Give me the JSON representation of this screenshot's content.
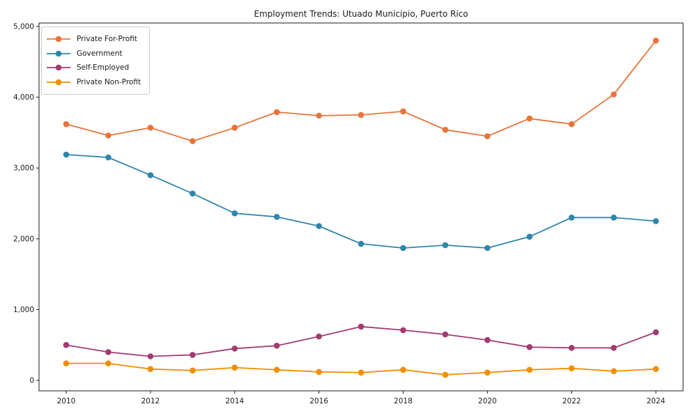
{
  "chart_data": {
    "type": "line",
    "title": "Employment Trends: Utuado Municipio, Puerto Rico",
    "x": [
      2010,
      2011,
      2012,
      2013,
      2014,
      2015,
      2016,
      2017,
      2018,
      2019,
      2020,
      2021,
      2022,
      2023,
      2024
    ],
    "series": [
      {
        "name": "Private For-Profit",
        "color": "#E8743B",
        "values": [
          3620,
          3460,
          3570,
          3380,
          3570,
          3790,
          3740,
          3750,
          3800,
          3540,
          3450,
          3700,
          3620,
          4040,
          4800
        ]
      },
      {
        "name": "Government",
        "color": "#2E86AB",
        "values": [
          3190,
          3150,
          2900,
          2640,
          2360,
          2310,
          2180,
          1930,
          1870,
          1910,
          1870,
          2030,
          2300,
          2300,
          2250
        ]
      },
      {
        "name": "Self-Employed",
        "color": "#A23B72",
        "values": [
          500,
          400,
          340,
          360,
          450,
          490,
          620,
          760,
          710,
          650,
          570,
          470,
          460,
          460,
          680
        ]
      },
      {
        "name": "Private Non-Profit",
        "color": "#F18F01",
        "values": [
          240,
          240,
          160,
          140,
          180,
          150,
          120,
          110,
          150,
          80,
          110,
          150,
          170,
          130,
          160
        ]
      }
    ],
    "xtick_labels": [
      "2010",
      "2012",
      "2014",
      "2016",
      "2018",
      "2020",
      "2022",
      "2024"
    ],
    "xtick_years": [
      2010,
      2012,
      2014,
      2016,
      2018,
      2020,
      2022,
      2024
    ],
    "ytick_labels": [
      "0",
      "1,000",
      "2,000",
      "3,000",
      "4,000",
      "5,000"
    ],
    "ytick_values": [
      0,
      1000,
      2000,
      3000,
      4000,
      5000
    ],
    "ylim": [
      -150,
      5050
    ],
    "xlabel": "",
    "ylabel": "",
    "grid": false,
    "legend_position": "upper left",
    "axis_color": "#1a1a1a"
  }
}
